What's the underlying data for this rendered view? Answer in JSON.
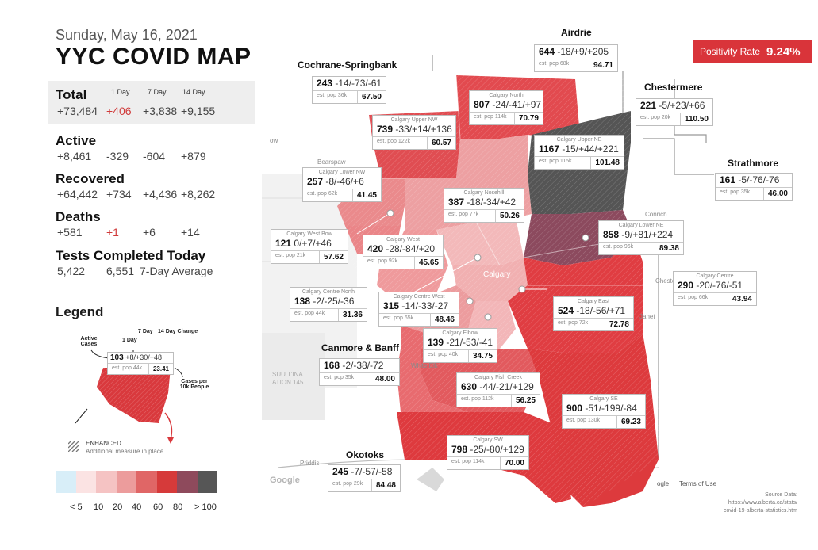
{
  "header": {
    "date": "Sunday, May 16, 2021",
    "title": "YYC COVID MAP"
  },
  "stats": {
    "columns": [
      "1 Day",
      "7 Day",
      "14 Day"
    ],
    "total": {
      "label": "Total",
      "value": "+73,484",
      "d1": "+406",
      "d7": "+3,838",
      "d14": "+9,155"
    },
    "active": {
      "label": "Active",
      "value": "+8,461",
      "d1": "-329",
      "d7": "-604",
      "d14": "+879"
    },
    "recovered": {
      "label": "Recovered",
      "value": "+64,442",
      "d1": "+734",
      "d7": "+4,436",
      "d14": "+8,262"
    },
    "deaths": {
      "label": "Deaths",
      "value": "+581",
      "d1": "+1",
      "d7": "+6",
      "d14": "+14"
    },
    "tests": {
      "label": "Tests Completed Today",
      "value": "5,422",
      "avg": "6,551",
      "avg_label": "7-Day Average"
    }
  },
  "legend": {
    "title": "Legend",
    "active_cases": "Active Cases",
    "col_1day": "1 Day",
    "col_7day": "7 Day",
    "col_14day": "14 Day Change",
    "sample_value": "103",
    "sample_changes": "+8/+30/+48",
    "sample_pop": "est. pop 44k",
    "sample_rate": "23.41",
    "cases_per": "Cases per 10k People",
    "enhanced": "ENHANCED",
    "enhanced_sub": "Additional measure in place",
    "ramp_colors": [
      "#d8eef8",
      "#fbe3e3",
      "#f5c3c3",
      "#ec9c9c",
      "#e06666",
      "#d63a3a",
      "#8e4a5c",
      "#565656"
    ],
    "ramp_labels": [
      "< 5",
      "10",
      "20",
      "40",
      "60",
      "80",
      "> 100"
    ]
  },
  "positivity": {
    "label": "Positivity Rate",
    "value": "9.24%"
  },
  "source": {
    "line1": "Source Data:",
    "line2": "https://www.alberta.ca/stats/",
    "line3": "covid-19-alberta-statistics.htm"
  },
  "map_labels": {
    "bearspaw": "Bearspaw",
    "calgary": "Calgary",
    "conrich": "Conrich",
    "janet": "Janet",
    "white_elk": "White Elk",
    "priddis": "Priddis",
    "google": "Google",
    "terms": "Terms of Use",
    "tsuu": "SUU T'INA",
    "ation": "ATION 145",
    "chester": "Cheste",
    "ogle": "ogle",
    "ow": "ow"
  },
  "regions": {
    "airdrie": {
      "name": "Airdrie",
      "cases": "644",
      "changes": "-18/+9/+205",
      "pop": "est. pop 68k",
      "rate": "94.71"
    },
    "cochrane": {
      "name": "Cochrane-Springbank",
      "cases": "243",
      "changes": "-14/-73/-61",
      "pop": "est. pop 36k",
      "rate": "67.50"
    },
    "chestermere": {
      "name": "Chestermere",
      "cases": "221",
      "changes": "-5/+23/+66",
      "pop": "est. pop 20k",
      "rate": "110.50"
    },
    "strathmore": {
      "name": "Strathmore",
      "cases": "161",
      "changes": "-5/-76/-76",
      "pop": "est. pop 35k",
      "rate": "46.00"
    },
    "canmore": {
      "name": "Canmore & Banff",
      "cases": "168",
      "changes": "-2/-38/-72",
      "pop": "est. pop 35k",
      "rate": "48.00"
    },
    "okotoks": {
      "name": "Okotoks",
      "cases": "245",
      "changes": "-7/-57/-58",
      "pop": "est. pop 29k",
      "rate": "84.48"
    },
    "north": {
      "name": "Calgary North",
      "cases": "807",
      "changes": "-24/-41/+97",
      "pop": "est. pop 114k",
      "rate": "70.79"
    },
    "upper_nw": {
      "name": "Calgary Upper NW",
      "cases": "739",
      "changes": "-33/+14/+136",
      "pop": "est. pop 122k",
      "rate": "60.57"
    },
    "upper_ne": {
      "name": "Calgary Upper NE",
      "cases": "1167",
      "changes": "-15/+44/+221",
      "pop": "est. pop 115k",
      "rate": "101.48"
    },
    "lower_nw": {
      "name": "Calgary Lower NW",
      "cases": "257",
      "changes": "-8/-46/+6",
      "pop": "est. pop 62k",
      "rate": "41.45"
    },
    "nosehill": {
      "name": "Calgary Nosehill",
      "cases": "387",
      "changes": "-18/-34/+42",
      "pop": "est. pop 77k",
      "rate": "50.26"
    },
    "lower_ne": {
      "name": "Calgary Lower NE",
      "cases": "858",
      "changes": "-9/+81/+224",
      "pop": "est. pop 96k",
      "rate": "89.38"
    },
    "west_bow": {
      "name": "Calgary West Bow",
      "cases": "121",
      "changes": "0/+7/+46",
      "pop": "est. pop 21k",
      "rate": "57.62"
    },
    "west": {
      "name": "Calgary West",
      "cases": "420",
      "changes": "-28/-84/+20",
      "pop": "est. pop 92k",
      "rate": "45.65"
    },
    "centre": {
      "name": "Calgary Centre",
      "cases": "290",
      "changes": "-20/-76/-51",
      "pop": "est. pop 66k",
      "rate": "43.94"
    },
    "centre_north": {
      "name": "Calgary Centre North",
      "cases": "138",
      "changes": "-2/-25/-36",
      "pop": "est. pop 44k",
      "rate": "31.36"
    },
    "centre_west": {
      "name": "Calgary Centre West",
      "cases": "315",
      "changes": "-14/-33/-27",
      "pop": "est. pop 65k",
      "rate": "48.46"
    },
    "east": {
      "name": "Calgary East",
      "cases": "524",
      "changes": "-18/-56/+71",
      "pop": "est. pop 72k",
      "rate": "72.78"
    },
    "elbow": {
      "name": "Calgary Elbow",
      "cases": "139",
      "changes": "-21/-53/-41",
      "pop": "est. pop 40k",
      "rate": "34.75"
    },
    "fish_creek": {
      "name": "Calgary Fish Creek",
      "cases": "630",
      "changes": "-44/-21/+129",
      "pop": "est. pop 112k",
      "rate": "56.25"
    },
    "se": {
      "name": "Calgary SE",
      "cases": "900",
      "changes": "-51/-199/-84",
      "pop": "est. pop 130k",
      "rate": "69.23"
    },
    "sw": {
      "name": "Calgary SW",
      "cases": "798",
      "changes": "-25/-80/+129",
      "pop": "est. pop 114k",
      "rate": "70.00"
    }
  }
}
